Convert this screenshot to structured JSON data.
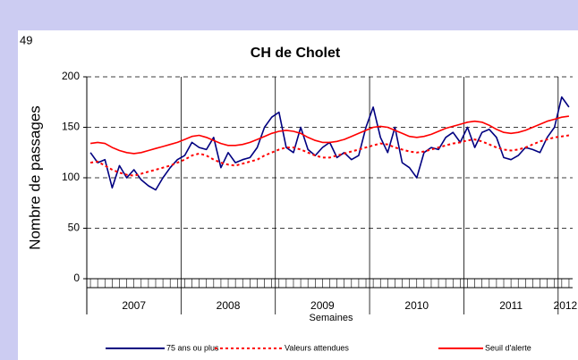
{
  "page_number": "49",
  "chart_data": {
    "type": "line",
    "title": "CH de Cholet",
    "ylabel": "Nombre de passages",
    "xlabel": "Semaines",
    "categories": [
      "2007",
      "2007",
      "2007",
      "2007",
      "2007",
      "2007",
      "2007",
      "2007",
      "2007",
      "2007",
      "2007",
      "2007",
      "2007",
      "2008",
      "2008",
      "2008",
      "2008",
      "2008",
      "2008",
      "2008",
      "2008",
      "2008",
      "2008",
      "2008",
      "2008",
      "2008",
      "2009",
      "2009",
      "2009",
      "2009",
      "2009",
      "2009",
      "2009",
      "2009",
      "2009",
      "2009",
      "2009",
      "2009",
      "2009",
      "2010",
      "2010",
      "2010",
      "2010",
      "2010",
      "2010",
      "2010",
      "2010",
      "2010",
      "2010",
      "2010",
      "2010",
      "2010",
      "2011",
      "2011",
      "2011",
      "2011",
      "2011",
      "2011",
      "2011",
      "2011",
      "2011",
      "2011",
      "2011",
      "2011",
      "2011",
      "2012",
      "2012"
    ],
    "series": [
      {
        "name": "75 ans ou plus",
        "color": "#000080",
        "style": "solid",
        "values": [
          125,
          115,
          118,
          90,
          112,
          100,
          108,
          98,
          92,
          88,
          100,
          110,
          118,
          122,
          135,
          130,
          128,
          140,
          110,
          125,
          115,
          118,
          120,
          130,
          150,
          160,
          165,
          130,
          125,
          150,
          128,
          122,
          130,
          135,
          120,
          125,
          118,
          122,
          150,
          170,
          140,
          125,
          150,
          115,
          110,
          100,
          125,
          130,
          128,
          140,
          145,
          135,
          150,
          130,
          145,
          148,
          140,
          120,
          118,
          122,
          130,
          128,
          125,
          140,
          150,
          180,
          170
        ]
      },
      {
        "name": "Valeurs attendues",
        "color": "#ff0000",
        "style": "dotted",
        "values": [
          115,
          116,
          112,
          108,
          105,
          103,
          102,
          104,
          106,
          108,
          110,
          112,
          115,
          118,
          122,
          124,
          122,
          118,
          115,
          113,
          112,
          114,
          116,
          118,
          122,
          125,
          128,
          130,
          130,
          128,
          125,
          122,
          120,
          120,
          122,
          124,
          126,
          128,
          130,
          132,
          134,
          133,
          130,
          128,
          126,
          125,
          126,
          128,
          130,
          132,
          134,
          135,
          137,
          138,
          136,
          133,
          130,
          128,
          127,
          128,
          130,
          133,
          136,
          138,
          140,
          141,
          142
        ]
      },
      {
        "name": "Seuil d'alerte",
        "color": "#ff0000",
        "style": "solid",
        "values": [
          134,
          135,
          134,
          130,
          127,
          125,
          124,
          125,
          127,
          129,
          131,
          133,
          135,
          138,
          141,
          142,
          140,
          137,
          134,
          132,
          132,
          133,
          135,
          138,
          141,
          144,
          146,
          147,
          146,
          144,
          140,
          137,
          135,
          135,
          136,
          138,
          141,
          144,
          147,
          150,
          151,
          150,
          147,
          144,
          141,
          140,
          141,
          143,
          146,
          149,
          151,
          153,
          155,
          156,
          155,
          152,
          148,
          145,
          144,
          145,
          147,
          150,
          153,
          156,
          158,
          160,
          161
        ]
      }
    ],
    "ylim": [
      0,
      200
    ],
    "yticks": [
      0,
      50,
      100,
      150,
      200
    ],
    "grid": true
  }
}
